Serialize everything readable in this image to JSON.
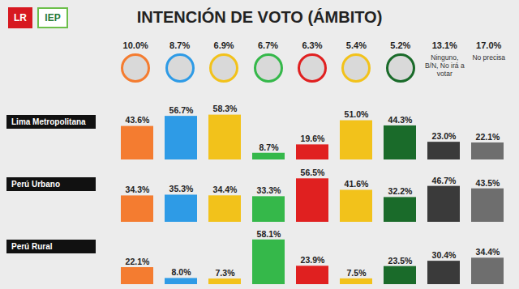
{
  "chart_data": {
    "type": "bar",
    "title": "INTENCIÓN DE VOTO (ÁMBITO)",
    "logos": [
      "LR",
      "IEP"
    ],
    "categories": [
      null,
      null,
      null,
      null,
      null,
      null,
      null,
      "Ninguno, B/N, No irá a votar",
      "No precisa"
    ],
    "colors": [
      "#f47c30",
      "#2e9be6",
      "#f2c21b",
      "#35b84a",
      "#e02020",
      "#f2c21b",
      "#1a6b2a",
      "#3a3a3a",
      "#6e6e6e"
    ],
    "total": {
      "values": [
        10.0,
        8.7,
        6.9,
        6.7,
        6.3,
        5.4,
        5.2,
        13.1,
        17.0
      ],
      "value_labels": [
        "10.0%",
        "8.7%",
        "6.9%",
        "6.7%",
        "6.3%",
        "5.4%",
        "5.2%",
        "13.1%",
        "17.0%"
      ]
    },
    "series": [
      {
        "name": "Lima Metropolitana",
        "values": [
          43.6,
          56.7,
          58.3,
          8.7,
          19.6,
          51.0,
          44.3,
          23.0,
          22.1
        ],
        "value_labels": [
          "43.6%",
          "56.7%",
          "58.3%",
          "8.7%",
          "19.6%",
          "51.0%",
          "44.3%",
          "23.0%",
          "22.1%"
        ]
      },
      {
        "name": "Perú Urbano",
        "values": [
          34.3,
          35.3,
          34.4,
          33.3,
          56.5,
          41.6,
          32.2,
          46.7,
          43.5
        ],
        "value_labels": [
          "34.3%",
          "35.3%",
          "34.4%",
          "33.3%",
          "56.5%",
          "41.6%",
          "32.2%",
          "46.7%",
          "43.5%"
        ]
      },
      {
        "name": "Perú Rural",
        "values": [
          22.1,
          8.0,
          7.3,
          58.1,
          23.9,
          7.5,
          23.5,
          30.4,
          34.4
        ],
        "value_labels": [
          "22.1%",
          "8.0%",
          "7.3%",
          "58.1%",
          "23.9%",
          "7.5%",
          "23.5%",
          "30.4%",
          "34.4%"
        ]
      }
    ],
    "ylim": [
      0,
      60
    ],
    "tick_labels": false,
    "data_labels": true
  }
}
